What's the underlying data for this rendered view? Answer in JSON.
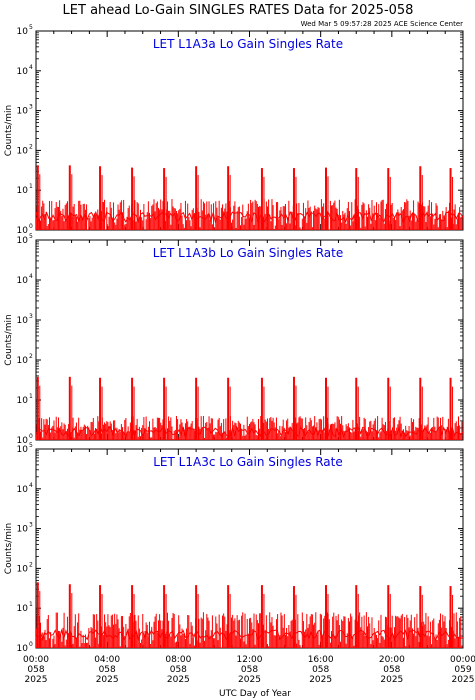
{
  "header": {
    "title": "LET ahead Lo-Gain SINGLES RATES Data for 2025-058",
    "timestamp": "Wed Mar  5 09:57:28 2025 ACE Science Center"
  },
  "chart_data": [
    {
      "type": "line",
      "title": "LET L1A3a Lo Gain Singles Rate",
      "ylabel": "Counts/min",
      "xlabel": "UTC Day of Year",
      "yscale": "log",
      "ylim": [
        1,
        100000
      ],
      "xlim": [
        0,
        24
      ],
      "color": "#ff0000",
      "baseline": 2,
      "noise_max": 6,
      "spike_times": [
        0.1,
        1.9,
        3.6,
        5.4,
        7.2,
        9.0,
        10.8,
        12.7,
        14.5,
        16.3,
        18.0,
        19.8,
        21.6,
        23.3
      ],
      "spike_values": [
        42,
        42,
        40,
        37,
        36,
        40,
        40,
        36,
        36,
        37,
        36,
        36,
        40,
        36
      ]
    },
    {
      "type": "line",
      "title": "LET L1A3b Lo Gain Singles Rate",
      "ylabel": "Counts/min",
      "xlabel": "UTC Day of Year",
      "yscale": "log",
      "ylim": [
        1,
        100000
      ],
      "xlim": [
        0,
        24
      ],
      "color": "#ff0000",
      "baseline": 1.5,
      "noise_max": 4,
      "spike_times": [
        0.1,
        1.9,
        3.6,
        5.4,
        7.2,
        9.0,
        10.8,
        12.7,
        14.5,
        16.3,
        18.0,
        19.8,
        21.6,
        23.3
      ],
      "spike_values": [
        38,
        38,
        36,
        36,
        36,
        36,
        36,
        36,
        38,
        36,
        36,
        36,
        36,
        36
      ]
    },
    {
      "type": "line",
      "title": "LET L1A3c Lo Gain Singles Rate",
      "ylabel": "Counts/min",
      "xlabel": "UTC Day of Year",
      "yscale": "log",
      "ylim": [
        1,
        100000
      ],
      "xlim": [
        0,
        24
      ],
      "color": "#ff0000",
      "baseline": 2,
      "noise_max": 8,
      "spike_times": [
        0.1,
        1.9,
        3.6,
        5.4,
        7.2,
        9.0,
        10.8,
        12.7,
        14.5,
        16.3,
        18.0,
        19.8,
        21.6,
        23.3
      ],
      "spike_values": [
        45,
        40,
        38,
        38,
        38,
        38,
        38,
        38,
        36,
        38,
        38,
        38,
        36,
        36
      ]
    }
  ],
  "yticks": [
    {
      "base": "10",
      "exp": "0"
    },
    {
      "base": "10",
      "exp": "1"
    },
    {
      "base": "10",
      "exp": "2"
    },
    {
      "base": "10",
      "exp": "3"
    },
    {
      "base": "10",
      "exp": "4"
    },
    {
      "base": "10",
      "exp": "5"
    }
  ],
  "xticks": [
    {
      "hour": 0,
      "time": "00:00",
      "doy": "058",
      "year": "2025"
    },
    {
      "hour": 4,
      "time": "04:00",
      "doy": "058",
      "year": "2025"
    },
    {
      "hour": 8,
      "time": "08:00",
      "doy": "058",
      "year": "2025"
    },
    {
      "hour": 12,
      "time": "12:00",
      "doy": "058",
      "year": "2025"
    },
    {
      "hour": 16,
      "time": "16:00",
      "doy": "058",
      "year": "2025"
    },
    {
      "hour": 20,
      "time": "20:00",
      "doy": "058",
      "year": "2025"
    },
    {
      "hour": 24,
      "time": "00:00",
      "doy": "059",
      "year": "2025"
    }
  ],
  "xlabel": "UTC Day of Year"
}
